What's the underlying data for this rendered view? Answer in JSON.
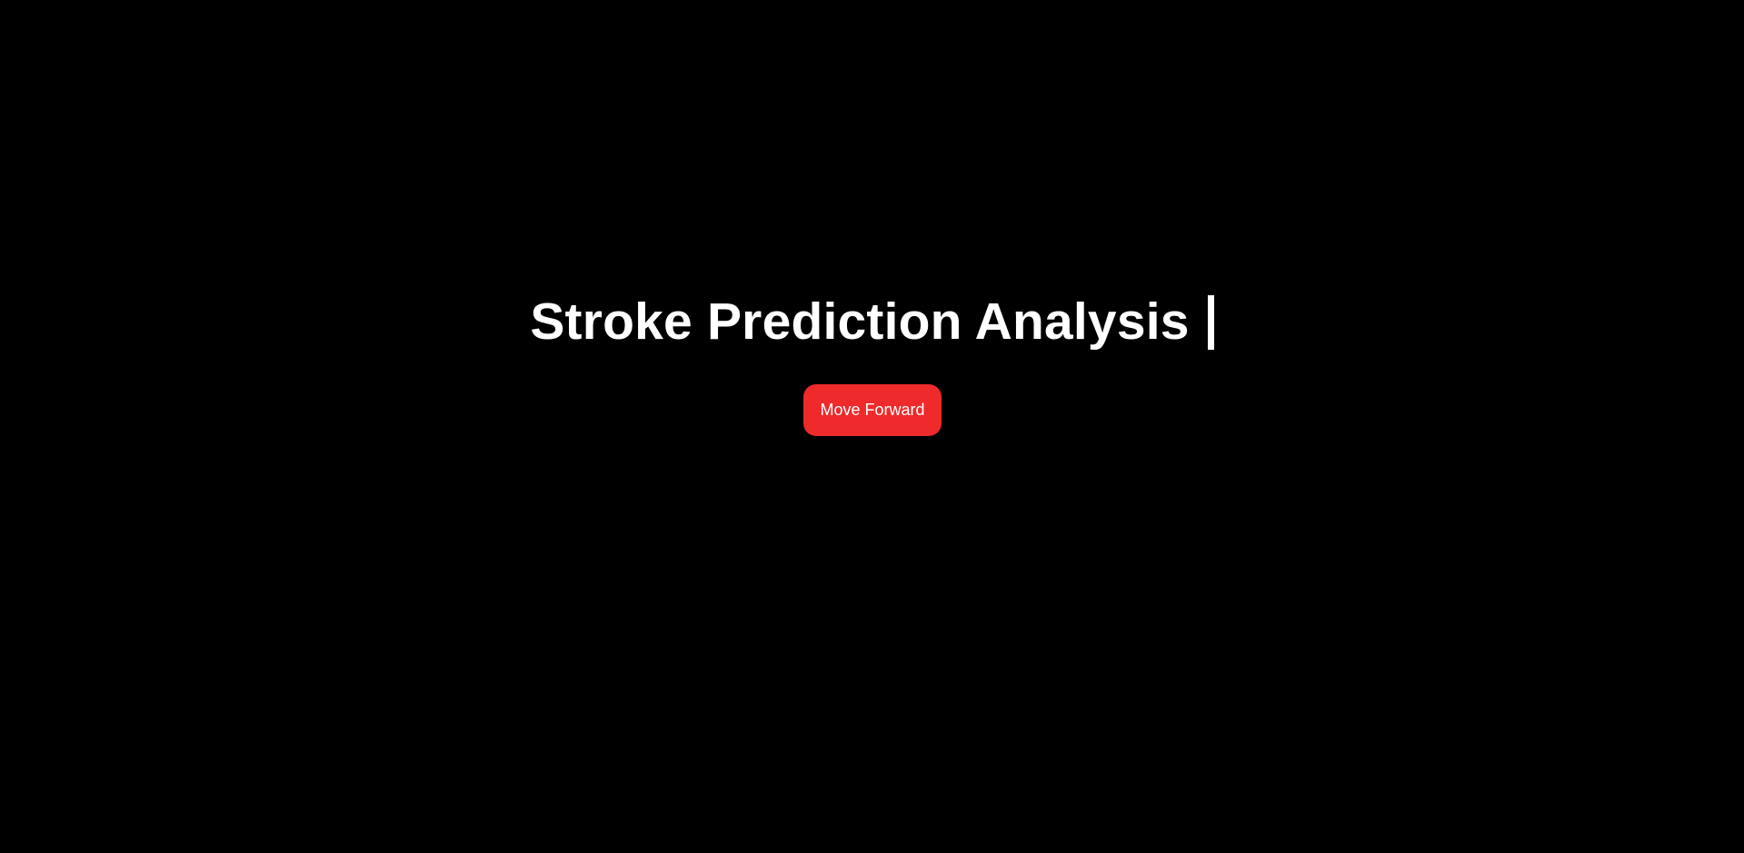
{
  "hero": {
    "title": "Stroke Prediction Analysis",
    "cursor_glyph": "|",
    "button_label": "Move Forward"
  },
  "colors": {
    "background": "#000000",
    "text": "#ffffff",
    "accent": "#ee2a2a"
  }
}
